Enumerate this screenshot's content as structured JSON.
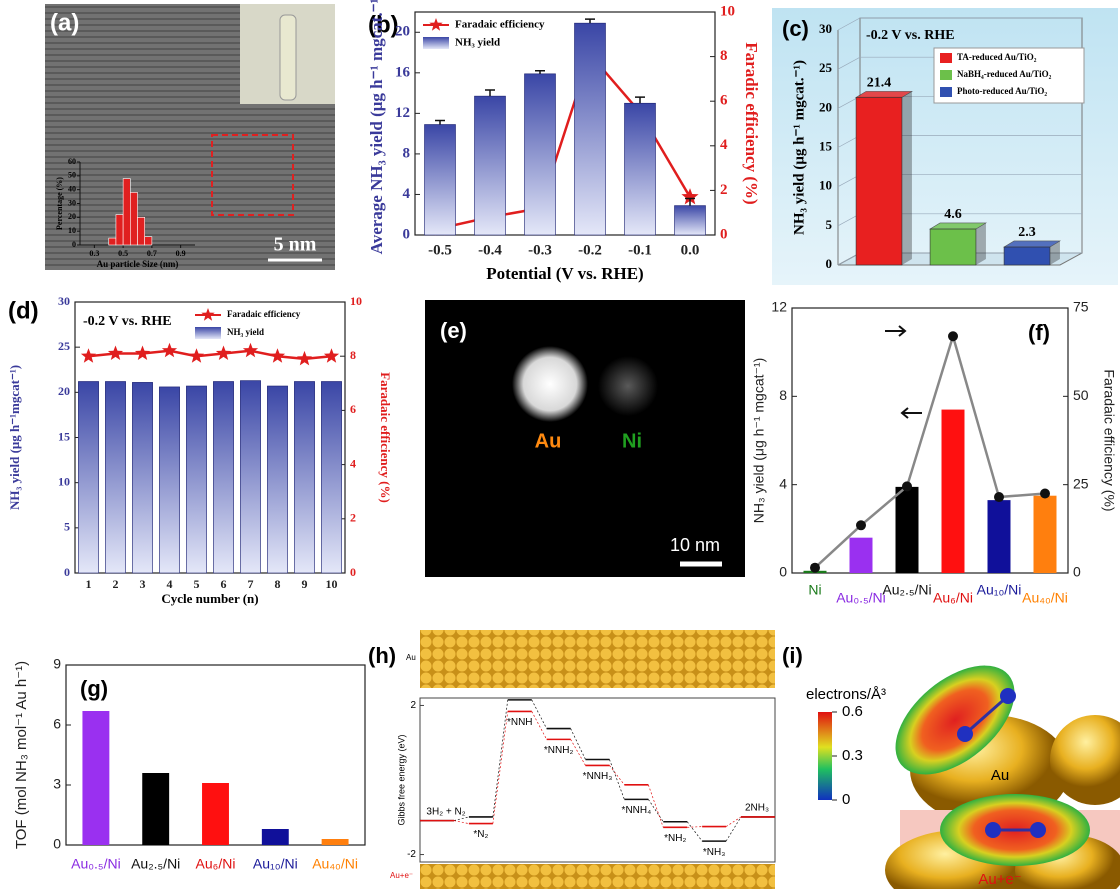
{
  "figure": {
    "panel_labels": [
      "(a)",
      "(b)",
      "(c)",
      "(d)",
      "(e)",
      "(f)",
      "(g)",
      "(h)",
      "(i)"
    ],
    "a_scale": "5 nm",
    "e_labels": [
      "Au",
      "Ni"
    ],
    "e_scale": "10 nm",
    "h_rows": [
      "Au",
      "Au+e⁻"
    ],
    "i_colorbar": {
      "title": "electrons/Å³",
      "lim": [
        0,
        0.6
      ],
      "ticks": [
        0,
        0.3,
        0.6
      ]
    },
    "i_captions": [
      "Au",
      "Au+e⁻"
    ]
  },
  "chart_data": [
    {
      "type": "histogram",
      "xlabel": "Au particle Size (nm)",
      "ylabel": "Percentage (%)",
      "color": "#e02020",
      "bins": [
        0.4,
        0.45,
        0.5,
        0.55,
        0.6,
        0.65,
        0.7
      ],
      "values": [
        5,
        22,
        48,
        38,
        20,
        6
      ],
      "xlim": [
        0.2,
        1.0
      ],
      "xticks": [
        0.3,
        0.5,
        0.7,
        0.9
      ],
      "ylim": [
        0,
        60
      ],
      "yticks": [
        0,
        10,
        20,
        30,
        40,
        50,
        60
      ]
    },
    {
      "type": "combo",
      "categories": [
        "-0.5",
        "-0.4",
        "-0.3",
        "-0.2",
        "-0.1",
        "0.0"
      ],
      "xlabel": "Potential (V vs. RHE)",
      "ylabel": "Average NH₃ yield (μg h⁻¹ mgcat.⁻¹)",
      "y2label": "Faradic efficiency (%)",
      "ylim": [
        0,
        22
      ],
      "yticks": [
        0,
        4,
        8,
        12,
        16,
        20
      ],
      "y2lim": [
        0,
        10
      ],
      "y2ticks": [
        0,
        2,
        4,
        6,
        8,
        10
      ],
      "legend": "upper left",
      "series": [
        {
          "name": "Faradaic efficiency",
          "type": "line",
          "axis": "y2",
          "color": "#e01e1e",
          "marker": "star",
          "values": [
            0.3,
            0.8,
            1.2,
            8.1,
            5.5,
            1.7
          ]
        },
        {
          "name": "NH₃ yield",
          "type": "bar",
          "color": "#3a46a6",
          "gradient": true,
          "values": [
            10.9,
            13.7,
            15.9,
            20.9,
            13.0,
            2.9
          ],
          "errors": [
            0.4,
            0.6,
            0.3,
            0.4,
            0.6,
            0.7
          ]
        }
      ]
    },
    {
      "type": "bar3d",
      "annotation": "-0.2 V vs. RHE",
      "ylabel": "NH₃ yield (μg h⁻¹ mgcat.⁻¹)",
      "ylim": [
        0,
        30
      ],
      "yticks": [
        0,
        5,
        10,
        15,
        20,
        25,
        30
      ],
      "legend": "upper right",
      "series": [
        {
          "name": "TA-reduced Au/TiO₂",
          "color": "#e82020",
          "values": [
            21.4
          ]
        },
        {
          "name": "NaBH₄-reduced Au/TiO₂",
          "color": "#6cc04a",
          "values": [
            4.6
          ]
        },
        {
          "name": "Photo-reduced Au/TiO₂",
          "color": "#3050b0",
          "values": [
            2.3
          ]
        }
      ]
    },
    {
      "type": "combo",
      "categories": [
        "1",
        "2",
        "3",
        "4",
        "5",
        "6",
        "7",
        "8",
        "9",
        "10"
      ],
      "annotation": "-0.2 V vs. RHE",
      "xlabel": "Cycle number (n)",
      "ylabel": "NH₃ yield (μg h⁻¹mgcat⁻¹)",
      "y2label": "Faradaic efficiency (%)",
      "ylim": [
        0,
        30
      ],
      "yticks": [
        0,
        5,
        10,
        15,
        20,
        25,
        30
      ],
      "y2lim": [
        0,
        10
      ],
      "y2ticks": [
        0,
        2,
        4,
        6,
        8,
        10
      ],
      "legend": "upper right",
      "series": [
        {
          "name": "Faradaic efficiency",
          "type": "line",
          "axis": "y2",
          "color": "#e01e1e",
          "marker": "star",
          "values": [
            8.0,
            8.1,
            8.1,
            8.2,
            8.0,
            8.1,
            8.2,
            8.0,
            7.9,
            8.0
          ]
        },
        {
          "name": "NH₃ yield",
          "type": "bar",
          "color": "#3a46a6",
          "gradient": true,
          "values": [
            21.2,
            21.2,
            21.1,
            20.6,
            20.7,
            21.2,
            21.3,
            20.7,
            21.2,
            21.2
          ]
        }
      ]
    },
    {
      "type": "combo",
      "categories": [
        "Ni",
        "Au₀.₅/Ni",
        "Au₂.₅/Ni",
        "Au₆/Ni",
        "Au₁₀/Ni",
        "Au₄₀/Ni"
      ],
      "category_colors": [
        "#1a7a1a",
        "#8a2be2",
        "#111111",
        "#e01010",
        "#1a1a9a",
        "#ff8000"
      ],
      "ylabel": "NH₃ yield (μg h⁻¹ mgcat⁻¹)",
      "y2label": "Faradaic efficiency (%)",
      "ylim": [
        0,
        12
      ],
      "yticks": [
        0,
        4,
        8,
        12
      ],
      "y2lim": [
        0,
        75
      ],
      "y2ticks": [
        0,
        25,
        50,
        75
      ],
      "series": [
        {
          "type": "bar",
          "colors": [
            "#1a7a1a",
            "#9a30f0",
            "#000000",
            "#ff1010",
            "#10109a",
            "#ff7f0e"
          ],
          "values": [
            0.1,
            1.6,
            3.9,
            7.4,
            3.3,
            3.5
          ]
        },
        {
          "type": "line",
          "axis": "y2",
          "color": "#888888",
          "marker": "circle",
          "marker_color": "#111111",
          "values": [
            1.5,
            13.5,
            24.5,
            67,
            21.5,
            22.5
          ]
        }
      ]
    },
    {
      "type": "combo",
      "categories": [
        "Au₀.₅/Ni",
        "Au₂.₅/Ni",
        "Au₆/Ni",
        "Au₁₀/Ni",
        "Au₄₀/Ni"
      ],
      "category_colors": [
        "#8a2be2",
        "#111111",
        "#e01010",
        "#1a1a9a",
        "#ff8000"
      ],
      "ylabel": "TOF (mol NH₃ mol⁻¹ Au h⁻¹)",
      "ylim": [
        0,
        9
      ],
      "yticks": [
        0,
        3,
        6,
        9
      ],
      "series": [
        {
          "type": "bar",
          "colors": [
            "#9a30f0",
            "#000000",
            "#ff1010",
            "#10109a",
            "#ff7f0e"
          ],
          "values": [
            6.7,
            3.6,
            3.1,
            0.8,
            0.3
          ]
        }
      ]
    },
    {
      "type": "energy",
      "ylabel": "Gibbs free energy (eV)",
      "categories": [
        "3H₂ + N₂",
        "*N₂",
        "*NNH",
        "*NNH₂",
        "*NNH₃",
        "*NNH₄",
        "*NH₂",
        "*NH₃",
        "2NH₃"
      ],
      "ylim": [
        -2.2,
        2.2
      ],
      "yticks": [
        -2,
        2
      ],
      "series": [
        {
          "color": "#111111",
          "values": [
            -1.09,
            -0.99,
            2.15,
            1.38,
            0.55,
            -0.52,
            -1.12,
            -1.64,
            -0.99
          ]
        },
        {
          "color": "#e01010",
          "values": [
            -1.09,
            -1.17,
            1.84,
            1.09,
            0.39,
            -0.13,
            -1.27,
            -1.25,
            -0.99
          ]
        }
      ]
    }
  ]
}
